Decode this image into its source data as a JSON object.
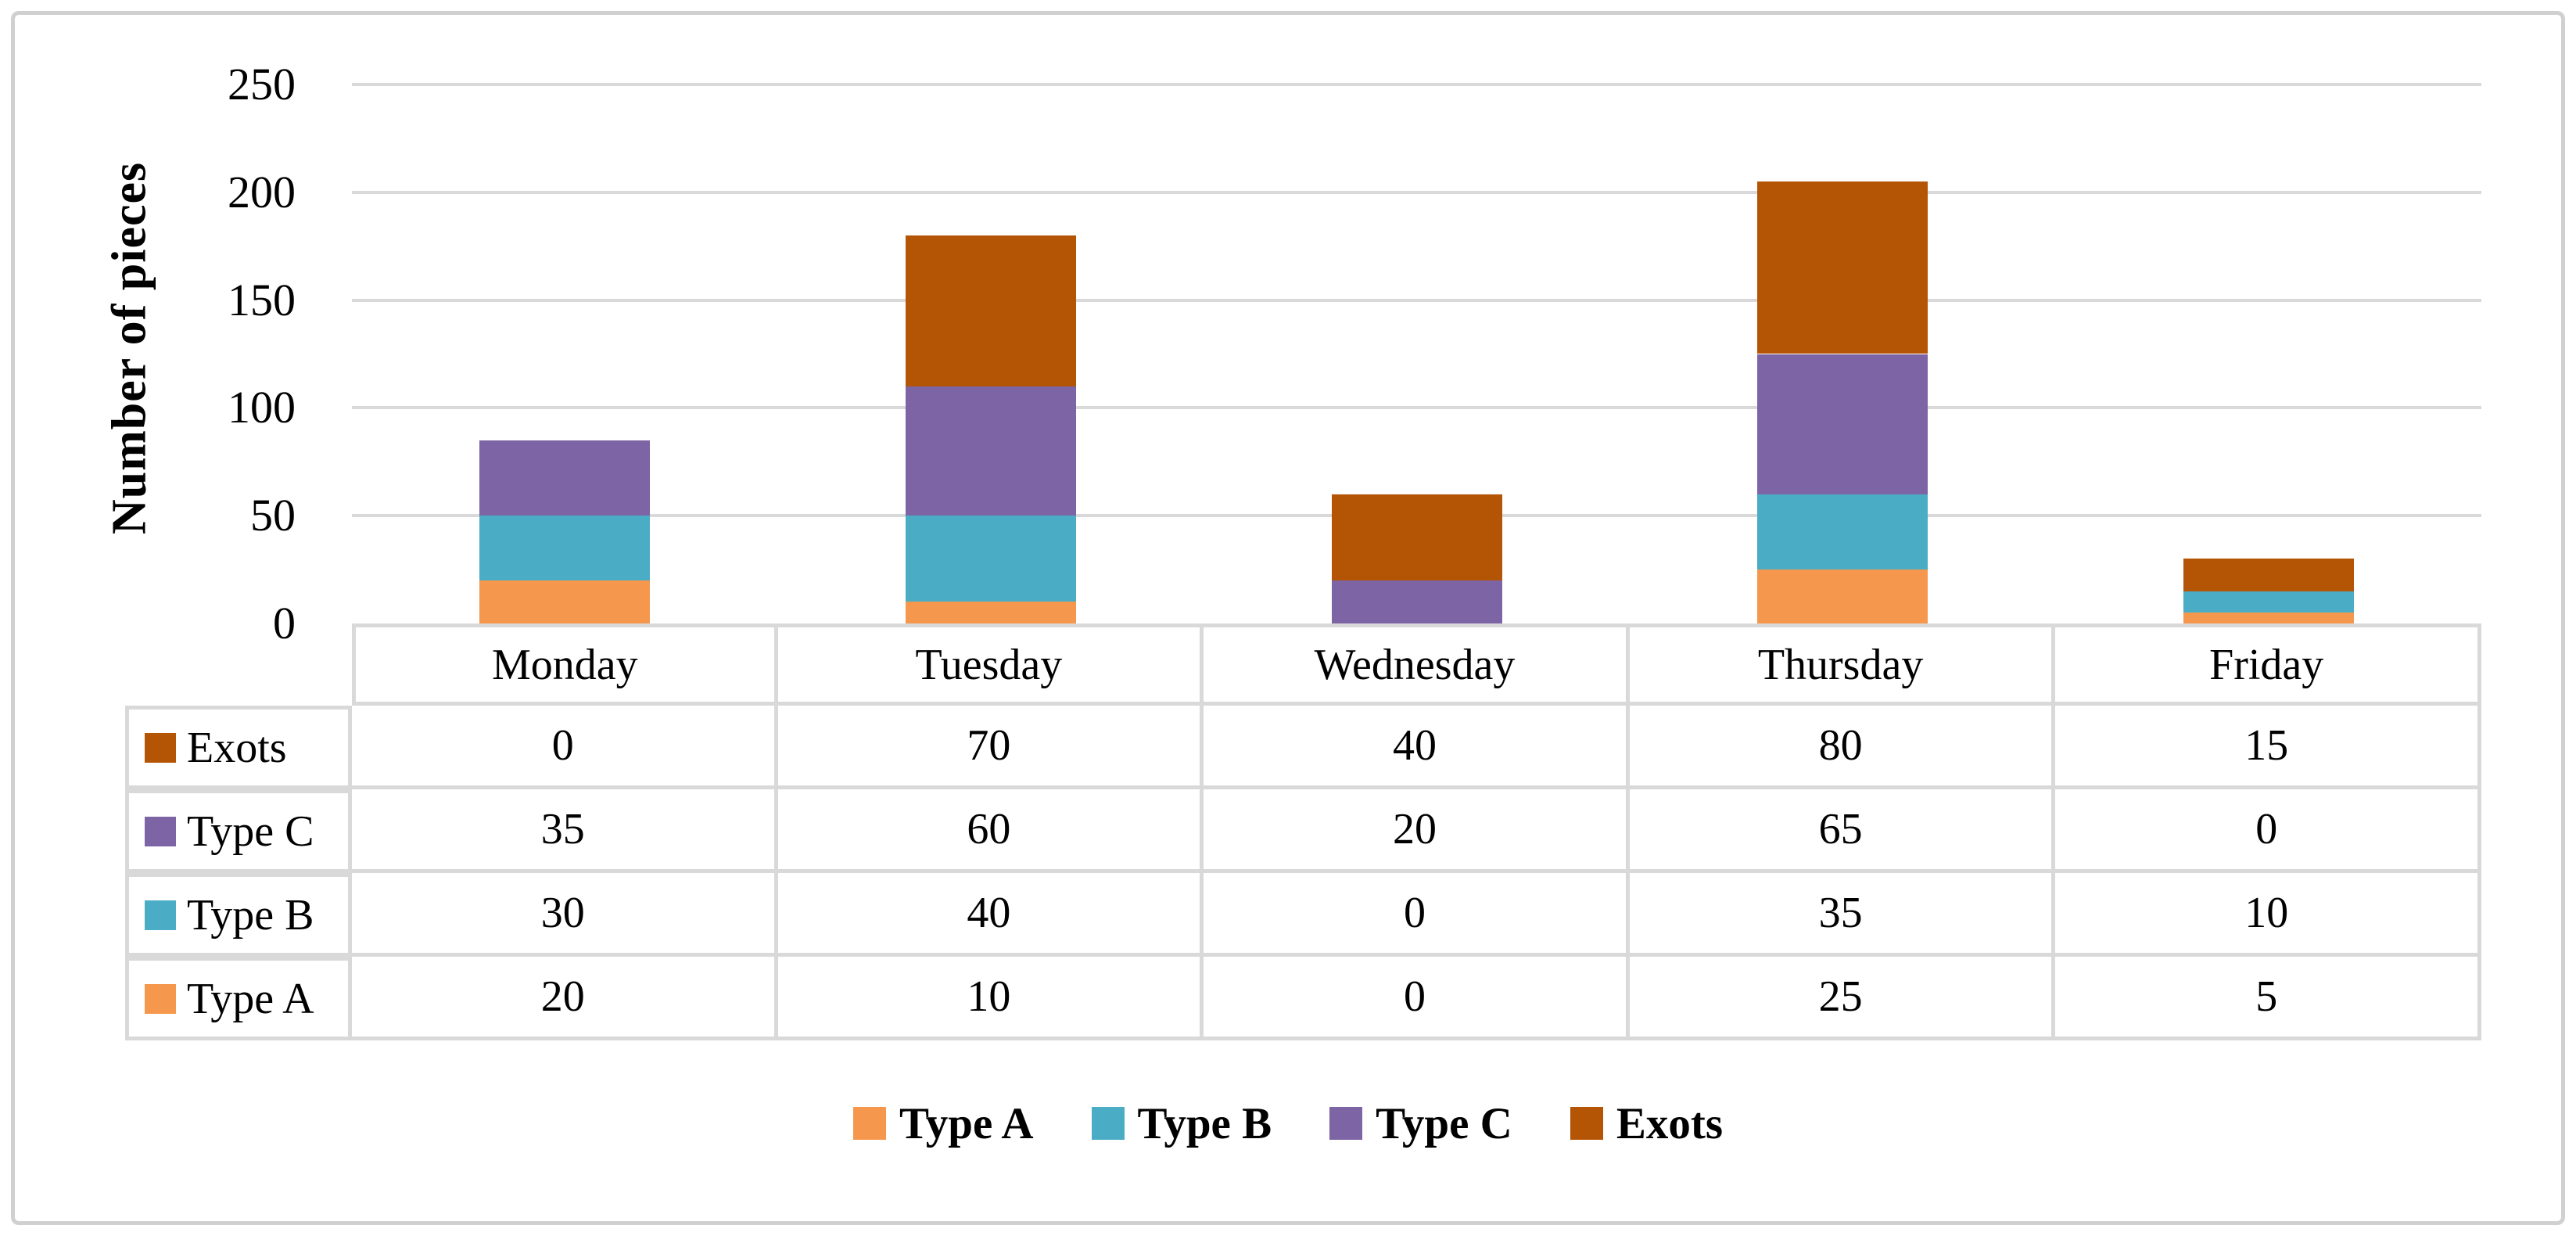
{
  "figure": {
    "background": "#ffffff",
    "outer_border_color": "#d0d0d0",
    "grid_color": "#d9d9d9",
    "table_border_color": "#d9d9d9",
    "text_color": "#000000"
  },
  "chart_data": {
    "type": "bar",
    "stacked": true,
    "title": "",
    "xlabel": "",
    "ylabel": "Number of pieces",
    "categories": [
      "Monday",
      "Tuesday",
      "Wednesday",
      "Thursday",
      "Friday"
    ],
    "series": [
      {
        "name": "Type A",
        "color": "#f5984d",
        "values": [
          20,
          10,
          0,
          25,
          5
        ]
      },
      {
        "name": "Type B",
        "color": "#4aacc5",
        "values": [
          30,
          40,
          0,
          35,
          10
        ]
      },
      {
        "name": "Type C",
        "color": "#7d64a4",
        "values": [
          35,
          60,
          20,
          65,
          0
        ]
      },
      {
        "name": "Exots",
        "color": "#b45506",
        "values": [
          0,
          70,
          40,
          80,
          15
        ]
      }
    ],
    "ylim": [
      0,
      250
    ],
    "yticks": [
      0,
      50,
      100,
      150,
      200,
      250
    ],
    "grid": true,
    "legend_position": "bottom",
    "legend_order": [
      "Type A",
      "Type B",
      "Type C",
      "Exots"
    ],
    "data_table": {
      "shown": true,
      "row_order": [
        "Exots",
        "Type C",
        "Type B",
        "Type A"
      ]
    }
  }
}
